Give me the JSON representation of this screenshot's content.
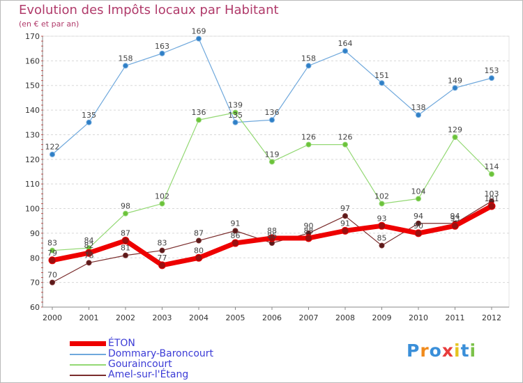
{
  "chart_data": {
    "type": "line",
    "title": "Evolution des Impôts locaux par Habitant",
    "subtitle": "(en € et par an)",
    "xlabel": "",
    "ylabel": "",
    "ylim": [
      60,
      170
    ],
    "yticks": [
      60,
      70,
      80,
      90,
      100,
      110,
      120,
      130,
      140,
      150,
      160,
      170
    ],
    "categories": [
      "2000",
      "2001",
      "2002",
      "2003",
      "2004",
      "2005",
      "2006",
      "2007",
      "2008",
      "2009",
      "2010",
      "2011",
      "2012"
    ],
    "series": [
      {
        "name": "ÉTON",
        "color": "#ee0000",
        "values": [
          79,
          82,
          87,
          77,
          80,
          86,
          88,
          88,
          91,
          93,
          90,
          93,
          101
        ]
      },
      {
        "name": "Dommary-Baroncourt",
        "color": "#6fa8dc",
        "values": [
          122,
          135,
          158,
          163,
          169,
          135,
          136,
          158,
          164,
          151,
          138,
          149,
          153
        ]
      },
      {
        "name": "Gouraincourt",
        "color": "#93d873",
        "values": [
          83,
          84,
          98,
          102,
          136,
          139,
          119,
          126,
          126,
          102,
          104,
          129,
          114
        ]
      },
      {
        "name": "Amel-sur-l'Étang",
        "color": "#7a2c2c",
        "values": [
          70,
          78,
          81,
          83,
          87,
          91,
          86,
          90,
          97,
          85,
          94,
          94,
          103
        ]
      }
    ],
    "legend_position": "bottom-left"
  },
  "logo": {
    "letters": [
      "P",
      "r",
      "o",
      "x",
      "i",
      "t",
      "i"
    ],
    "colors": [
      "#3a8fd9",
      "#f08a1c",
      "#3a8fd9",
      "#e83c3c",
      "#e5c420",
      "#3a8fd9",
      "#7cc24a"
    ]
  }
}
